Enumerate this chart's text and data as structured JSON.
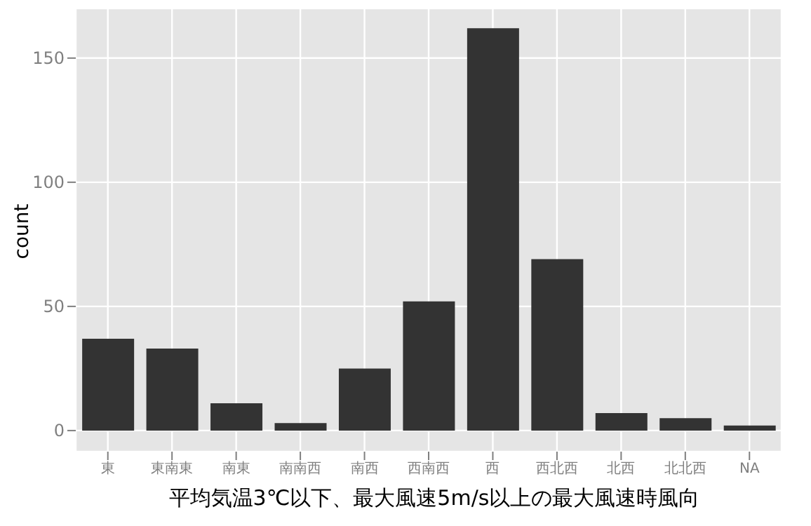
{
  "chart_data": {
    "type": "bar",
    "xlabel": "平均気温3℃以下、最大風速5m/s以上の最大風速時風向",
    "ylabel": "count",
    "categories": [
      "東",
      "東南東",
      "南東",
      "南南西",
      "南西",
      "西南西",
      "西",
      "西北西",
      "北西",
      "北北西",
      "NA"
    ],
    "values": [
      37,
      33,
      11,
      3,
      25,
      52,
      162,
      69,
      7,
      5,
      2
    ],
    "color": "#333333",
    "ylim": [
      -8.5,
      170
    ],
    "yticks": [
      0,
      50,
      100,
      150
    ],
    "grid": true
  }
}
